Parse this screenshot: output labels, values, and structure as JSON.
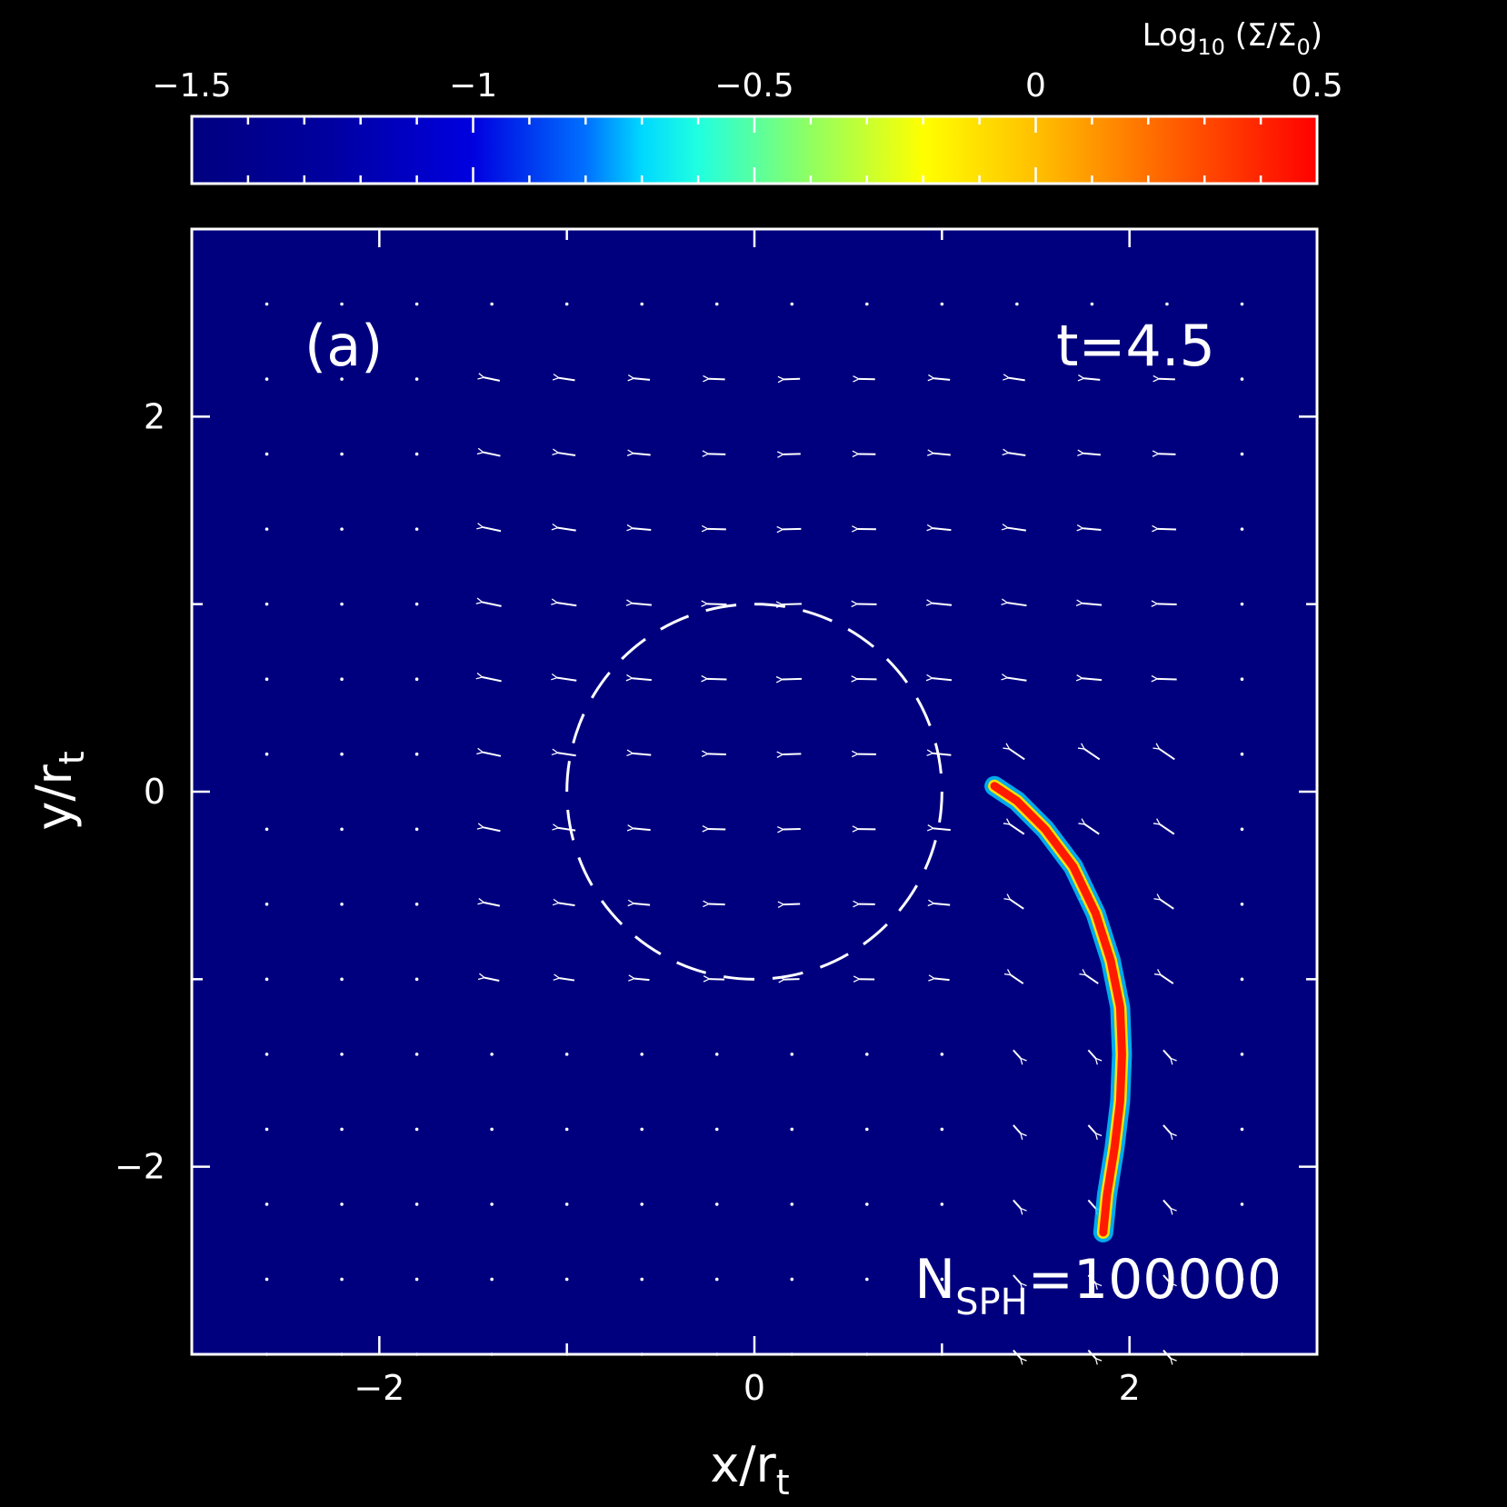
{
  "chart_data": {
    "type": "heatmap",
    "panel_label": "(a)",
    "time_label": "t=4.5",
    "particle_label": {
      "base": "N",
      "sub": "SPH",
      "value": "=100000"
    },
    "xlabel": {
      "base": "x/r",
      "sub": "t"
    },
    "ylabel": {
      "base": "y/r",
      "sub": "t"
    },
    "xlim": [
      -3,
      3
    ],
    "ylim": [
      -3,
      3
    ],
    "x_ticks": [
      -2,
      0,
      2
    ],
    "y_ticks": [
      -2,
      0,
      2
    ],
    "x_tick_labels": [
      "−2",
      "0",
      "2"
    ],
    "y_tick_labels": [
      "−2",
      "0",
      "2"
    ],
    "colorbar": {
      "label": {
        "base": "Log",
        "sub": "10",
        "rest": " (Σ/Σ",
        "sub2": "0",
        "end": ")"
      },
      "range": [
        -1.5,
        0.5
      ],
      "ticks": [
        -1.5,
        -1,
        -0.5,
        0,
        0.5
      ],
      "tick_labels": [
        "−1.5",
        "−1",
        "−0.5",
        "0",
        "0.5"
      ],
      "colormap": [
        "#00007f",
        "#0000ff",
        "#00ffff",
        "#7fff7f",
        "#ffff00",
        "#ff7f00",
        "#ff0000"
      ]
    },
    "background_color": "#00007f",
    "circle": {
      "center": [
        0,
        0
      ],
      "radius": 1,
      "style": "dashed"
    },
    "stream": {
      "description_values": "density ridge along curve (x,y)",
      "points": [
        [
          1.28,
          0.03
        ],
        [
          1.4,
          -0.05
        ],
        [
          1.55,
          -0.2
        ],
        [
          1.7,
          -0.4
        ],
        [
          1.82,
          -0.65
        ],
        [
          1.9,
          -0.9
        ],
        [
          1.95,
          -1.15
        ],
        [
          1.96,
          -1.4
        ],
        [
          1.95,
          -1.65
        ],
        [
          1.92,
          -1.9
        ],
        [
          1.88,
          -2.15
        ],
        [
          1.86,
          -2.35
        ]
      ],
      "log_density": 0.5
    },
    "velocity_field": {
      "grid_x": [
        -2.6,
        -2.2,
        -1.8,
        -1.4,
        -1.0,
        -0.6,
        -0.2,
        0.2,
        0.6,
        1.0,
        1.4,
        1.8,
        2.2,
        2.6
      ],
      "grid_y": [
        2.6,
        2.2,
        1.8,
        1.4,
        1.0,
        0.6,
        0.2,
        -0.2,
        -0.6,
        -1.0,
        -1.4,
        -1.8,
        -2.2,
        -2.6,
        -3.0
      ]
    }
  }
}
